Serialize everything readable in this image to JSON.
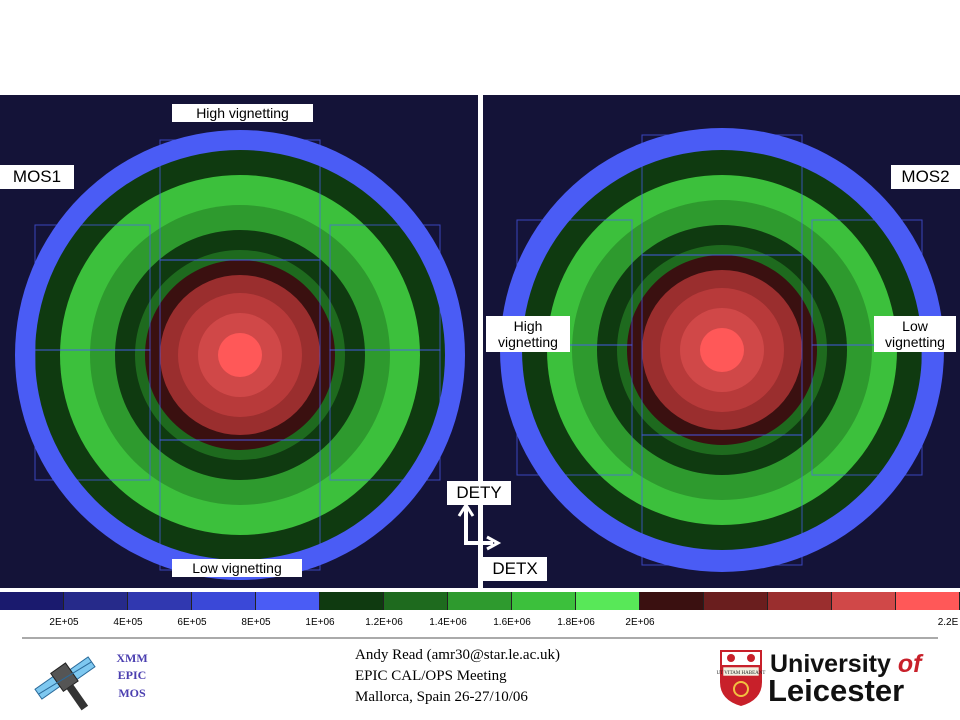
{
  "panels": {
    "left_name": "MOS1",
    "right_name": "MOS2"
  },
  "annotations": {
    "top_left": "High vignetting",
    "bottom_left": "Low vignetting",
    "mid_right_inner_l1": "High",
    "mid_right_inner_l2": "vignetting",
    "mid_right_outer_l1": "Low",
    "mid_right_outer_l2": "vignetting",
    "axis_y": "DETY",
    "axis_x": "DETX"
  },
  "colorbar": {
    "colors": [
      "#1a1a6e",
      "#262a8a",
      "#3038b0",
      "#3a48d8",
      "#4a5cf5",
      "#0f3a10",
      "#1e6a1e",
      "#2e9a2e",
      "#3cc03c",
      "#58e858",
      "#3a1010",
      "#6a1e1e",
      "#9a2e2e",
      "#d04848",
      "#ff5858"
    ],
    "ticks": [
      "2E+05",
      "4E+05",
      "6E+05",
      "8E+05",
      "1E+06",
      "1.2E+06",
      "1.4E+06",
      "1.6E+06",
      "1.8E+06",
      "2E+06",
      "2.2E"
    ]
  },
  "footer": {
    "logo_lines": [
      "XMM",
      "EPIC",
      "MOS"
    ],
    "author": "Andy Read (amr30@star.le.ac.uk)",
    "meeting": "EPIC CAL/OPS Meeting",
    "place": "Mallorca, Spain 26-27/10/06",
    "university_line1": "University",
    "university_of": "of",
    "university_line2": "Leicester",
    "crest_motto": "UT VITAM HABEANT"
  }
}
